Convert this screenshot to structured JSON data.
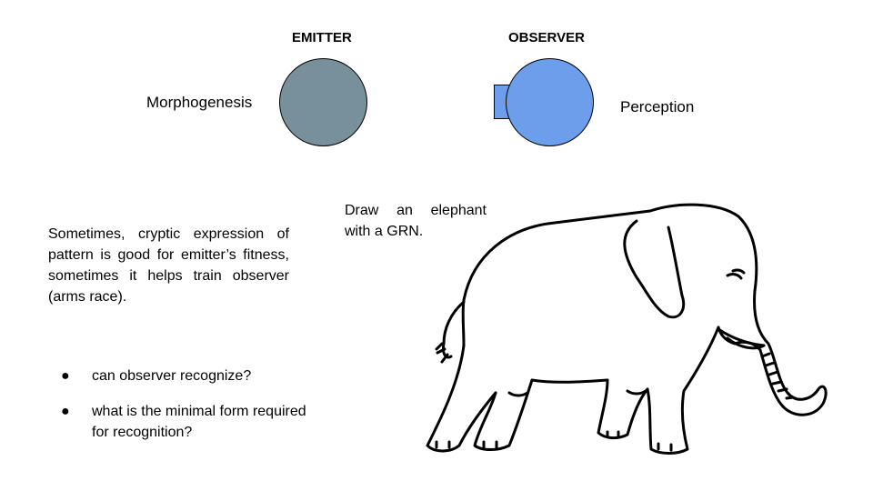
{
  "emitter": {
    "heading": "EMITTER",
    "label": "Morphogenesis",
    "color": "#78909c"
  },
  "observer": {
    "heading": "OBSERVER",
    "label": "Perception",
    "color": "#6d9eeb"
  },
  "paragraph": "Sometimes, cryptic expression of pattern is good for emitter’s fitness, sometimes it helps train observer (arms race).",
  "bullets": [
    "can observer recognize?",
    "what is the minimal form required for recognition?"
  ],
  "bullet_glyph": "●",
  "elephant_caption": "Draw an elephant with a GRN.",
  "elephant_icon": "elephant-line-drawing"
}
